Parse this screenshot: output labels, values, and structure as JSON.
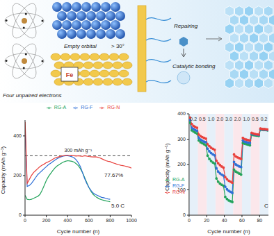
{
  "diagram": {
    "left_caption": "Four unpaired electrons",
    "orbital": "Empty orbital",
    "element": "Fe",
    "angle": "> 30°",
    "process_1": "Repairing",
    "process_2": "Catalytic bonding"
  },
  "chart_data": [
    {
      "type": "line",
      "xlabel": "Cycle number (n)",
      "ylabel": "Capacity (mAh g⁻¹)",
      "x": [
        1,
        20,
        40,
        60,
        80,
        100,
        120,
        140,
        160,
        180,
        200,
        220,
        240,
        260,
        280,
        300,
        320,
        340,
        360,
        380,
        400,
        420,
        440,
        460,
        480,
        500,
        520,
        540,
        560,
        580,
        600,
        620,
        640,
        660,
        680,
        700,
        720,
        740,
        760,
        780,
        800,
        820,
        840,
        860,
        880,
        900,
        920,
        940,
        960,
        980,
        1000
      ],
      "xlim": [
        0,
        1000
      ],
      "xticks": [
        0,
        200,
        400,
        600,
        800,
        1000
      ],
      "ylim": [
        0,
        480
      ],
      "yticks": [
        0,
        200,
        400
      ],
      "grid": false,
      "legend": "upper center",
      "series": [
        {
          "name": "RG-A",
          "color": "#22a35a",
          "marker": "none",
          "values": [
            100,
            80,
            78,
            80,
            85,
            90,
            95,
            105,
            125,
            150,
            175,
            195,
            210,
            225,
            238,
            248,
            255,
            262,
            268,
            272,
            275,
            274,
            272,
            268,
            260,
            250,
            235,
            215,
            190,
            165,
            140,
            120,
            105,
            95,
            88,
            82,
            78,
            75,
            72,
            70,
            68,
            null,
            null,
            null,
            null,
            null,
            null,
            null,
            null,
            null,
            null
          ]
        },
        {
          "name": "RG-F",
          "color": "#2f6fd6",
          "marker": "none",
          "values": [
            430,
            145,
            150,
            160,
            175,
            190,
            205,
            215,
            225,
            235,
            245,
            255,
            262,
            270,
            278,
            285,
            290,
            295,
            298,
            300,
            300,
            298,
            295,
            290,
            280,
            265,
            245,
            215,
            185,
            160,
            140,
            125,
            112,
            105,
            100,
            95,
            90,
            88,
            85,
            82,
            80,
            null,
            null,
            null,
            null,
            null,
            null,
            null,
            null,
            null,
            null
          ]
        },
        {
          "name": "RG-N",
          "color": "#e8403c",
          "marker": "none",
          "values": [
            470,
            160,
            180,
            200,
            215,
            225,
            235,
            245,
            252,
            258,
            265,
            270,
            275,
            282,
            288,
            292,
            295,
            298,
            300,
            302,
            303,
            300,
            302,
            300,
            298,
            300,
            298,
            297,
            300,
            298,
            296,
            295,
            294,
            295,
            293,
            290,
            285,
            280,
            275,
            272,
            270,
            265,
            262,
            258,
            255,
            252,
            250,
            248,
            245,
            242,
            238
          ]
        }
      ],
      "reference_line": {
        "value": 300,
        "label": "300 mAh g⁻¹"
      },
      "annotations": [
        "77.67%",
        "5.0 C"
      ]
    },
    {
      "type": "line",
      "xlabel": "Cycle number (n)",
      "ylabel": "Capacity (mAh g⁻¹)",
      "x": [
        1,
        3,
        5,
        7,
        9,
        11,
        13,
        15,
        17,
        19,
        21,
        23,
        25,
        27,
        29,
        31,
        33,
        35,
        37,
        39,
        41,
        43,
        45,
        47,
        49,
        51,
        53,
        55,
        57,
        59,
        61,
        63,
        65,
        67,
        69,
        71,
        73,
        75,
        77,
        79,
        81,
        83,
        85,
        87,
        89
      ],
      "xlim": [
        0,
        90
      ],
      "xticks": [
        0,
        20,
        40,
        60,
        80
      ],
      "ylim": [
        0,
        400
      ],
      "yticks": [
        0,
        100,
        200,
        300,
        400
      ],
      "grid": false,
      "legend": "lower left",
      "series": [
        {
          "name": "RG-A",
          "color": "#22a35a",
          "marker": "circle",
          "values": [
            365,
            335,
            330,
            326,
            322,
            295,
            288,
            284,
            280,
            276,
            235,
            222,
            214,
            208,
            204,
            145,
            132,
            125,
            120,
            116,
            72,
            64,
            58,
            55,
            52,
            180,
            172,
            168,
            164,
            160,
            285,
            282,
            280,
            278,
            276,
            318,
            316,
            315,
            314,
            313,
            338,
            337,
            336,
            336,
            335
          ]
        },
        {
          "name": "RG-F",
          "color": "#2f6fd6",
          "marker": "circle",
          "values": [
            375,
            345,
            340,
            336,
            333,
            305,
            298,
            294,
            290,
            288,
            262,
            252,
            245,
            240,
            236,
            185,
            172,
            165,
            160,
            156,
            112,
            102,
            96,
            92,
            88,
            210,
            200,
            196,
            192,
            190,
            295,
            290,
            288,
            286,
            285,
            322,
            320,
            318,
            317,
            316,
            340,
            338,
            338,
            337,
            336
          ]
        },
        {
          "name": "RG-N",
          "color": "#e8403c",
          "marker": "circle",
          "values": [
            385,
            360,
            352,
            348,
            345,
            318,
            312,
            308,
            305,
            302,
            280,
            272,
            266,
            262,
            258,
            215,
            205,
            198,
            192,
            188,
            150,
            142,
            136,
            132,
            128,
            240,
            232,
            228,
            225,
            222,
            305,
            300,
            298,
            296,
            295,
            325,
            322,
            320,
            319,
            318,
            342,
            340,
            340,
            339,
            338
          ]
        }
      ],
      "rate_segments": [
        {
          "label": "0.2",
          "start": 0,
          "end": 10
        },
        {
          "label": "0.5",
          "start": 10,
          "end": 20
        },
        {
          "label": "1.0",
          "start": 20,
          "end": 30
        },
        {
          "label": "2.0",
          "start": 30,
          "end": 40
        },
        {
          "label": "3.0",
          "start": 40,
          "end": 50
        },
        {
          "label": "2.0",
          "start": 50,
          "end": 60
        },
        {
          "label": "1.0",
          "start": 60,
          "end": 70
        },
        {
          "label": "0.5",
          "start": 70,
          "end": 80
        },
        {
          "label": "0.2",
          "start": 80,
          "end": 90
        }
      ],
      "annotations": [
        "C"
      ]
    }
  ]
}
